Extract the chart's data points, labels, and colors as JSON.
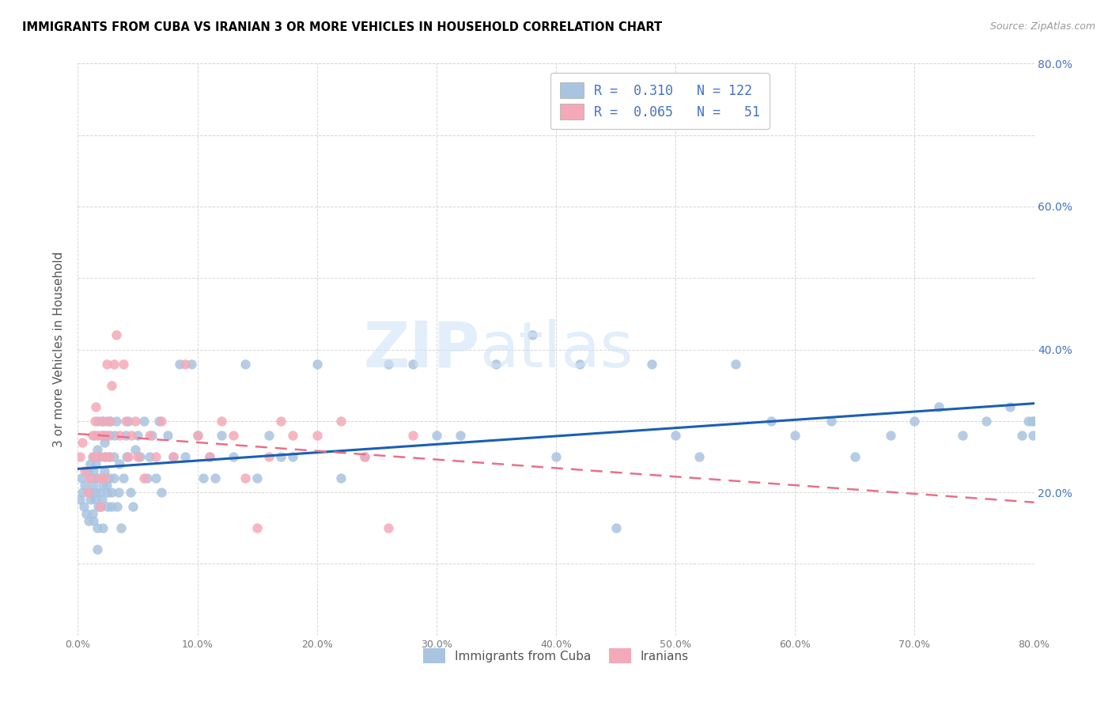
{
  "title": "IMMIGRANTS FROM CUBA VS IRANIAN 3 OR MORE VEHICLES IN HOUSEHOLD CORRELATION CHART",
  "source": "Source: ZipAtlas.com",
  "ylabel": "3 or more Vehicles in Household",
  "xlim": [
    0.0,
    0.8
  ],
  "ylim": [
    0.0,
    0.8
  ],
  "cuba_color": "#a8c4e0",
  "iran_color": "#f4a9b8",
  "cuba_line_color": "#1a5fb4",
  "iran_line_color": "#e8708a",
  "legend_R_cuba": "0.310",
  "legend_N_cuba": "122",
  "legend_R_iran": "0.065",
  "legend_N_iran": "51",
  "cuba_x": [
    0.002,
    0.003,
    0.004,
    0.005,
    0.006,
    0.007,
    0.008,
    0.009,
    0.01,
    0.01,
    0.01,
    0.011,
    0.012,
    0.012,
    0.013,
    0.013,
    0.013,
    0.014,
    0.014,
    0.015,
    0.015,
    0.015,
    0.016,
    0.016,
    0.016,
    0.017,
    0.017,
    0.018,
    0.018,
    0.019,
    0.019,
    0.02,
    0.02,
    0.02,
    0.021,
    0.021,
    0.022,
    0.022,
    0.022,
    0.023,
    0.023,
    0.024,
    0.024,
    0.025,
    0.025,
    0.026,
    0.026,
    0.027,
    0.027,
    0.028,
    0.028,
    0.03,
    0.03,
    0.031,
    0.032,
    0.033,
    0.034,
    0.035,
    0.036,
    0.038,
    0.04,
    0.041,
    0.042,
    0.044,
    0.046,
    0.048,
    0.05,
    0.052,
    0.055,
    0.058,
    0.06,
    0.062,
    0.065,
    0.068,
    0.07,
    0.075,
    0.08,
    0.085,
    0.09,
    0.095,
    0.1,
    0.105,
    0.11,
    0.115,
    0.12,
    0.13,
    0.14,
    0.15,
    0.16,
    0.17,
    0.18,
    0.2,
    0.22,
    0.24,
    0.26,
    0.28,
    0.3,
    0.32,
    0.35,
    0.38,
    0.4,
    0.42,
    0.45,
    0.48,
    0.5,
    0.52,
    0.55,
    0.58,
    0.6,
    0.63,
    0.65,
    0.68,
    0.7,
    0.72,
    0.74,
    0.76,
    0.78,
    0.79,
    0.795,
    0.798,
    0.799,
    0.8
  ],
  "cuba_y": [
    0.19,
    0.22,
    0.2,
    0.18,
    0.21,
    0.17,
    0.23,
    0.16,
    0.24,
    0.19,
    0.2,
    0.22,
    0.17,
    0.25,
    0.23,
    0.21,
    0.16,
    0.28,
    0.19,
    0.2,
    0.24,
    0.22,
    0.26,
    0.15,
    0.12,
    0.18,
    0.3,
    0.2,
    0.22,
    0.18,
    0.25,
    0.28,
    0.3,
    0.19,
    0.21,
    0.15,
    0.23,
    0.22,
    0.27,
    0.25,
    0.28,
    0.21,
    0.3,
    0.18,
    0.2,
    0.25,
    0.22,
    0.28,
    0.3,
    0.18,
    0.2,
    0.25,
    0.22,
    0.28,
    0.3,
    0.18,
    0.2,
    0.24,
    0.15,
    0.22,
    0.28,
    0.25,
    0.3,
    0.2,
    0.18,
    0.26,
    0.28,
    0.25,
    0.3,
    0.22,
    0.25,
    0.28,
    0.22,
    0.3,
    0.2,
    0.28,
    0.25,
    0.38,
    0.25,
    0.38,
    0.28,
    0.22,
    0.25,
    0.22,
    0.28,
    0.25,
    0.38,
    0.22,
    0.28,
    0.25,
    0.25,
    0.38,
    0.22,
    0.25,
    0.38,
    0.38,
    0.28,
    0.28,
    0.38,
    0.42,
    0.25,
    0.38,
    0.15,
    0.38,
    0.28,
    0.25,
    0.38,
    0.3,
    0.28,
    0.3,
    0.25,
    0.28,
    0.3,
    0.32,
    0.28,
    0.3,
    0.32,
    0.28,
    0.3,
    0.3,
    0.28,
    0.3
  ],
  "iran_x": [
    0.002,
    0.004,
    0.006,
    0.008,
    0.01,
    0.012,
    0.013,
    0.014,
    0.015,
    0.016,
    0.017,
    0.018,
    0.019,
    0.02,
    0.021,
    0.022,
    0.023,
    0.024,
    0.025,
    0.026,
    0.027,
    0.028,
    0.03,
    0.032,
    0.035,
    0.038,
    0.04,
    0.042,
    0.045,
    0.048,
    0.05,
    0.055,
    0.06,
    0.065,
    0.07,
    0.08,
    0.09,
    0.1,
    0.11,
    0.12,
    0.13,
    0.14,
    0.15,
    0.16,
    0.17,
    0.18,
    0.2,
    0.22,
    0.24,
    0.26,
    0.28
  ],
  "iran_y": [
    0.25,
    0.27,
    0.23,
    0.2,
    0.22,
    0.28,
    0.25,
    0.3,
    0.32,
    0.25,
    0.28,
    0.22,
    0.18,
    0.28,
    0.3,
    0.25,
    0.22,
    0.38,
    0.28,
    0.25,
    0.3,
    0.35,
    0.38,
    0.42,
    0.28,
    0.38,
    0.3,
    0.25,
    0.28,
    0.3,
    0.25,
    0.22,
    0.28,
    0.25,
    0.3,
    0.25,
    0.38,
    0.28,
    0.25,
    0.3,
    0.28,
    0.22,
    0.15,
    0.25,
    0.3,
    0.28,
    0.28,
    0.3,
    0.25,
    0.15,
    0.28
  ]
}
